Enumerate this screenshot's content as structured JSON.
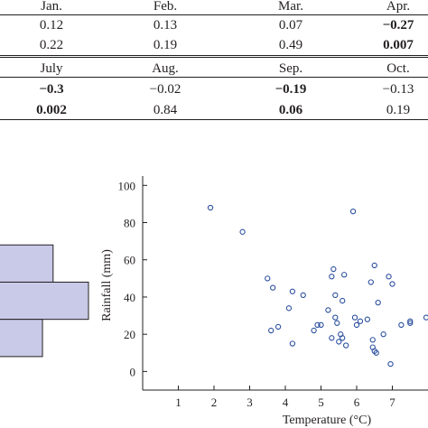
{
  "table": {
    "rows": [
      {
        "type": "header",
        "cells": [
          {
            "text": "Jan.",
            "bold": false
          },
          {
            "text": "Feb.",
            "bold": false
          },
          {
            "text": "Mar.",
            "bold": false
          },
          {
            "text": "Apr.",
            "bold": false
          }
        ]
      },
      {
        "type": "value",
        "cells": [
          {
            "text": "0.12",
            "bold": false
          },
          {
            "text": "0.13",
            "bold": false
          },
          {
            "text": "0.07",
            "bold": false
          },
          {
            "text": "−0.27",
            "bold": true
          }
        ]
      },
      {
        "type": "value",
        "cells": [
          {
            "text": "0.22",
            "bold": false
          },
          {
            "text": "0.19",
            "bold": false
          },
          {
            "text": "0.49",
            "bold": false
          },
          {
            "text": "0.007",
            "bold": true
          }
        ]
      },
      {
        "type": "header",
        "cells": [
          {
            "text": "July",
            "bold": false
          },
          {
            "text": "Aug.",
            "bold": false
          },
          {
            "text": "Sep.",
            "bold": false
          },
          {
            "text": "Oct.",
            "bold": false
          }
        ]
      },
      {
        "type": "value",
        "cells": [
          {
            "text": "−0.3",
            "bold": true
          },
          {
            "text": "−0.02",
            "bold": false
          },
          {
            "text": "−0.19",
            "bold": true
          },
          {
            "text": "−0.13",
            "bold": false
          }
        ]
      },
      {
        "type": "value",
        "cells": [
          {
            "text": "0.002",
            "bold": true
          },
          {
            "text": "0.84",
            "bold": false
          },
          {
            "text": "0.06",
            "bold": true
          },
          {
            "text": "0.19",
            "bold": false
          }
        ]
      }
    ]
  },
  "colors": {
    "text": "#231f20",
    "marker": "#2b4f9e",
    "histogram_fill": "#c9c9e8",
    "histogram_edge": "#231f20"
  },
  "chart_data": [
    {
      "type": "scatter",
      "title": "",
      "xlabel": "Temperature (°C)",
      "ylabel": "Rainfall (mm)",
      "xlim": [
        0,
        8
      ],
      "ylim": [
        -10,
        105
      ],
      "xticks": [
        1,
        2,
        3,
        4,
        5,
        6,
        7
      ],
      "yticks": [
        0,
        20,
        40,
        60,
        80,
        100
      ],
      "grid": false,
      "marker": "open-circle",
      "series": [
        {
          "points": [
            [
              1.9,
              88
            ],
            [
              2.8,
              75
            ],
            [
              5.9,
              86
            ],
            [
              3.5,
              50
            ],
            [
              3.65,
              45
            ],
            [
              3.8,
              24
            ],
            [
              3.6,
              22
            ],
            [
              4.1,
              34
            ],
            [
              4.2,
              43
            ],
            [
              4.2,
              15
            ],
            [
              4.5,
              41
            ],
            [
              4.8,
              22
            ],
            [
              4.9,
              25
            ],
            [
              5.0,
              25
            ],
            [
              5.2,
              33
            ],
            [
              5.3,
              18
            ],
            [
              5.3,
              51
            ],
            [
              5.35,
              55
            ],
            [
              5.4,
              41
            ],
            [
              5.4,
              29
            ],
            [
              5.45,
              26
            ],
            [
              5.5,
              16
            ],
            [
              5.55,
              20
            ],
            [
              5.6,
              18
            ],
            [
              5.6,
              38
            ],
            [
              5.65,
              52
            ],
            [
              5.7,
              14
            ],
            [
              5.95,
              29
            ],
            [
              6.0,
              25
            ],
            [
              6.1,
              27
            ],
            [
              6.3,
              28
            ],
            [
              6.4,
              48
            ],
            [
              6.45,
              17
            ],
            [
              6.45,
              13
            ],
            [
              6.5,
              57
            ],
            [
              6.5,
              11
            ],
            [
              6.55,
              10
            ],
            [
              6.6,
              37
            ],
            [
              6.75,
              20
            ],
            [
              6.9,
              51
            ],
            [
              6.95,
              4
            ],
            [
              7.0,
              47
            ],
            [
              7.25,
              25
            ],
            [
              7.5,
              26
            ],
            [
              7.5,
              27
            ],
            [
              7.95,
              29
            ]
          ]
        }
      ]
    },
    {
      "type": "bar",
      "orientation": "horizontal",
      "title": "",
      "note": "partially visible histogram at left edge",
      "bins": [
        {
          "y_from": 48,
          "y_to": 68,
          "value": 0.6
        },
        {
          "y_from": 28,
          "y_to": 48,
          "value": 1.0
        },
        {
          "y_from": 8,
          "y_to": 28,
          "value": 0.48
        }
      ]
    }
  ]
}
